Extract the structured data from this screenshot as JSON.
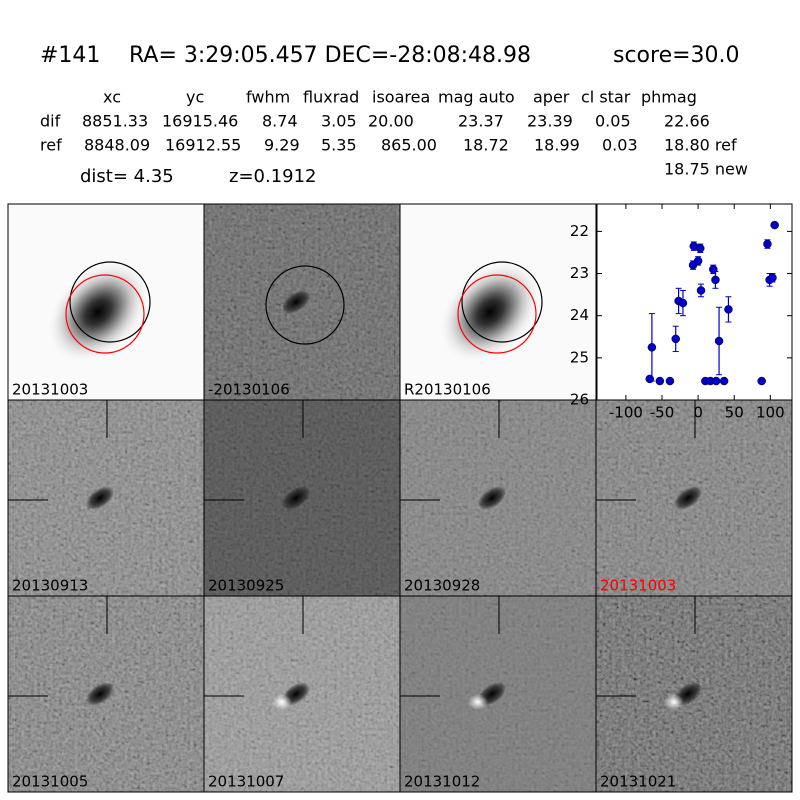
{
  "header": {
    "id": "#141",
    "coords": "RA= 3:29:05.457 DEC=-28:08:48.98",
    "score": "score=30.0"
  },
  "table": {
    "columns": [
      "xc",
      "yc",
      "fwhm",
      "fluxrad",
      "isoarea",
      "mag auto",
      "aper",
      "cl star",
      "phmag"
    ],
    "rows": [
      [
        "dif",
        "8851.33",
        "16915.46",
        "8.74",
        "3.05",
        "20.00",
        "23.37",
        "23.39",
        "0.05",
        "22.66"
      ],
      [
        "ref",
        "8848.09",
        "16912.55",
        "9.29",
        "5.35",
        "865.00",
        "18.72",
        "18.99",
        "0.03",
        "18.80 ref"
      ]
    ],
    "note": "18.75 new"
  },
  "info": {
    "dist": "dist=  4.35",
    "z": "z=0.1912"
  },
  "stamps": [
    {
      "label": "20131003",
      "color": "#000000"
    },
    {
      "label": "-20130106",
      "color": "#000000"
    },
    {
      "label": "R20130106",
      "color": "#000000"
    },
    {
      "label": "20130913",
      "color": "#000000"
    },
    {
      "label": "20130925",
      "color": "#000000"
    },
    {
      "label": "20130928",
      "color": "#000000"
    },
    {
      "label": "20131003",
      "color": "#ff0000"
    },
    {
      "label": "20131005",
      "color": "#000000"
    },
    {
      "label": "20131007",
      "color": "#000000"
    },
    {
      "label": "20131012",
      "color": "#000000"
    },
    {
      "label": "20131021",
      "color": "#000000"
    }
  ],
  "chart_data": {
    "type": "scatter",
    "color": "#0000cc",
    "x": [
      -67,
      -64,
      -53,
      -39,
      -31,
      -27,
      -21,
      -7,
      -6,
      0,
      3,
      4,
      10,
      17,
      21,
      24,
      25,
      29,
      36,
      42,
      88,
      96,
      99,
      103,
      106
    ],
    "y": [
      25.5,
      24.75,
      25.55,
      25.55,
      24.55,
      23.65,
      23.7,
      22.8,
      22.35,
      22.7,
      22.4,
      23.4,
      25.55,
      25.55,
      22.9,
      23.15,
      25.55,
      24.6,
      25.55,
      23.85,
      25.55,
      22.3,
      23.15,
      23.1,
      21.85
    ],
    "yerr": [
      0.05,
      0.8,
      0.05,
      0.05,
      0.3,
      0.3,
      0.3,
      0.1,
      0.1,
      0.1,
      0.1,
      0.15,
      0.05,
      0.05,
      0.1,
      0.2,
      0.05,
      0.8,
      0.05,
      0.3,
      0.05,
      0.1,
      0.15,
      0.1,
      0.05
    ],
    "xlim": [
      -140,
      130
    ],
    "ylim": [
      26,
      21.35
    ],
    "xticks": [
      -100,
      -50,
      0,
      50,
      100
    ],
    "yticks": [
      22,
      23,
      24,
      25,
      26
    ]
  }
}
